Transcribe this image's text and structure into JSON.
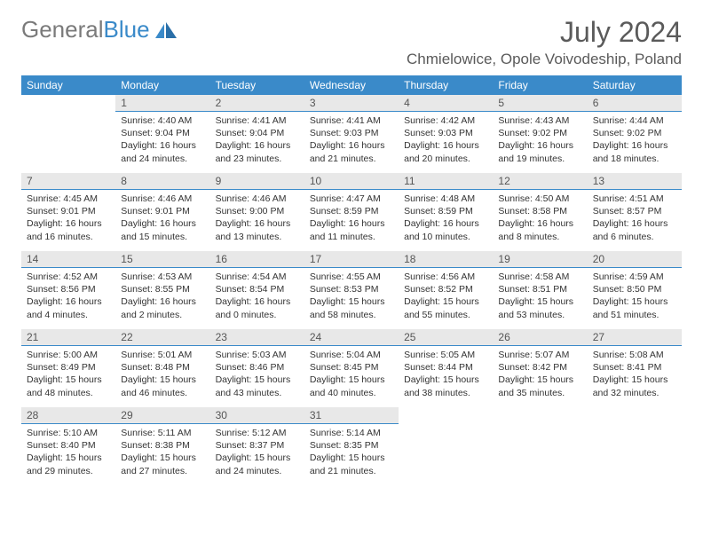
{
  "logo": {
    "text_gray": "General",
    "text_blue": "Blue"
  },
  "title": "July 2024",
  "location": "Chmielowice, Opole Voivodeship, Poland",
  "colors": {
    "header_bg": "#3a8ac9",
    "daynum_bg": "#e8e8e8",
    "daynum_border": "#3a8ac9",
    "text": "#333333",
    "title_text": "#5a5a5a"
  },
  "weekdays": [
    "Sunday",
    "Monday",
    "Tuesday",
    "Wednesday",
    "Thursday",
    "Friday",
    "Saturday"
  ],
  "weeks": [
    [
      null,
      {
        "num": "1",
        "sunrise": "Sunrise: 4:40 AM",
        "sunset": "Sunset: 9:04 PM",
        "day1": "Daylight: 16 hours",
        "day2": "and 24 minutes."
      },
      {
        "num": "2",
        "sunrise": "Sunrise: 4:41 AM",
        "sunset": "Sunset: 9:04 PM",
        "day1": "Daylight: 16 hours",
        "day2": "and 23 minutes."
      },
      {
        "num": "3",
        "sunrise": "Sunrise: 4:41 AM",
        "sunset": "Sunset: 9:03 PM",
        "day1": "Daylight: 16 hours",
        "day2": "and 21 minutes."
      },
      {
        "num": "4",
        "sunrise": "Sunrise: 4:42 AM",
        "sunset": "Sunset: 9:03 PM",
        "day1": "Daylight: 16 hours",
        "day2": "and 20 minutes."
      },
      {
        "num": "5",
        "sunrise": "Sunrise: 4:43 AM",
        "sunset": "Sunset: 9:02 PM",
        "day1": "Daylight: 16 hours",
        "day2": "and 19 minutes."
      },
      {
        "num": "6",
        "sunrise": "Sunrise: 4:44 AM",
        "sunset": "Sunset: 9:02 PM",
        "day1": "Daylight: 16 hours",
        "day2": "and 18 minutes."
      }
    ],
    [
      {
        "num": "7",
        "sunrise": "Sunrise: 4:45 AM",
        "sunset": "Sunset: 9:01 PM",
        "day1": "Daylight: 16 hours",
        "day2": "and 16 minutes."
      },
      {
        "num": "8",
        "sunrise": "Sunrise: 4:46 AM",
        "sunset": "Sunset: 9:01 PM",
        "day1": "Daylight: 16 hours",
        "day2": "and 15 minutes."
      },
      {
        "num": "9",
        "sunrise": "Sunrise: 4:46 AM",
        "sunset": "Sunset: 9:00 PM",
        "day1": "Daylight: 16 hours",
        "day2": "and 13 minutes."
      },
      {
        "num": "10",
        "sunrise": "Sunrise: 4:47 AM",
        "sunset": "Sunset: 8:59 PM",
        "day1": "Daylight: 16 hours",
        "day2": "and 11 minutes."
      },
      {
        "num": "11",
        "sunrise": "Sunrise: 4:48 AM",
        "sunset": "Sunset: 8:59 PM",
        "day1": "Daylight: 16 hours",
        "day2": "and 10 minutes."
      },
      {
        "num": "12",
        "sunrise": "Sunrise: 4:50 AM",
        "sunset": "Sunset: 8:58 PM",
        "day1": "Daylight: 16 hours",
        "day2": "and 8 minutes."
      },
      {
        "num": "13",
        "sunrise": "Sunrise: 4:51 AM",
        "sunset": "Sunset: 8:57 PM",
        "day1": "Daylight: 16 hours",
        "day2": "and 6 minutes."
      }
    ],
    [
      {
        "num": "14",
        "sunrise": "Sunrise: 4:52 AM",
        "sunset": "Sunset: 8:56 PM",
        "day1": "Daylight: 16 hours",
        "day2": "and 4 minutes."
      },
      {
        "num": "15",
        "sunrise": "Sunrise: 4:53 AM",
        "sunset": "Sunset: 8:55 PM",
        "day1": "Daylight: 16 hours",
        "day2": "and 2 minutes."
      },
      {
        "num": "16",
        "sunrise": "Sunrise: 4:54 AM",
        "sunset": "Sunset: 8:54 PM",
        "day1": "Daylight: 16 hours",
        "day2": "and 0 minutes."
      },
      {
        "num": "17",
        "sunrise": "Sunrise: 4:55 AM",
        "sunset": "Sunset: 8:53 PM",
        "day1": "Daylight: 15 hours",
        "day2": "and 58 minutes."
      },
      {
        "num": "18",
        "sunrise": "Sunrise: 4:56 AM",
        "sunset": "Sunset: 8:52 PM",
        "day1": "Daylight: 15 hours",
        "day2": "and 55 minutes."
      },
      {
        "num": "19",
        "sunrise": "Sunrise: 4:58 AM",
        "sunset": "Sunset: 8:51 PM",
        "day1": "Daylight: 15 hours",
        "day2": "and 53 minutes."
      },
      {
        "num": "20",
        "sunrise": "Sunrise: 4:59 AM",
        "sunset": "Sunset: 8:50 PM",
        "day1": "Daylight: 15 hours",
        "day2": "and 51 minutes."
      }
    ],
    [
      {
        "num": "21",
        "sunrise": "Sunrise: 5:00 AM",
        "sunset": "Sunset: 8:49 PM",
        "day1": "Daylight: 15 hours",
        "day2": "and 48 minutes."
      },
      {
        "num": "22",
        "sunrise": "Sunrise: 5:01 AM",
        "sunset": "Sunset: 8:48 PM",
        "day1": "Daylight: 15 hours",
        "day2": "and 46 minutes."
      },
      {
        "num": "23",
        "sunrise": "Sunrise: 5:03 AM",
        "sunset": "Sunset: 8:46 PM",
        "day1": "Daylight: 15 hours",
        "day2": "and 43 minutes."
      },
      {
        "num": "24",
        "sunrise": "Sunrise: 5:04 AM",
        "sunset": "Sunset: 8:45 PM",
        "day1": "Daylight: 15 hours",
        "day2": "and 40 minutes."
      },
      {
        "num": "25",
        "sunrise": "Sunrise: 5:05 AM",
        "sunset": "Sunset: 8:44 PM",
        "day1": "Daylight: 15 hours",
        "day2": "and 38 minutes."
      },
      {
        "num": "26",
        "sunrise": "Sunrise: 5:07 AM",
        "sunset": "Sunset: 8:42 PM",
        "day1": "Daylight: 15 hours",
        "day2": "and 35 minutes."
      },
      {
        "num": "27",
        "sunrise": "Sunrise: 5:08 AM",
        "sunset": "Sunset: 8:41 PM",
        "day1": "Daylight: 15 hours",
        "day2": "and 32 minutes."
      }
    ],
    [
      {
        "num": "28",
        "sunrise": "Sunrise: 5:10 AM",
        "sunset": "Sunset: 8:40 PM",
        "day1": "Daylight: 15 hours",
        "day2": "and 29 minutes."
      },
      {
        "num": "29",
        "sunrise": "Sunrise: 5:11 AM",
        "sunset": "Sunset: 8:38 PM",
        "day1": "Daylight: 15 hours",
        "day2": "and 27 minutes."
      },
      {
        "num": "30",
        "sunrise": "Sunrise: 5:12 AM",
        "sunset": "Sunset: 8:37 PM",
        "day1": "Daylight: 15 hours",
        "day2": "and 24 minutes."
      },
      {
        "num": "31",
        "sunrise": "Sunrise: 5:14 AM",
        "sunset": "Sunset: 8:35 PM",
        "day1": "Daylight: 15 hours",
        "day2": "and 21 minutes."
      },
      null,
      null,
      null
    ]
  ]
}
